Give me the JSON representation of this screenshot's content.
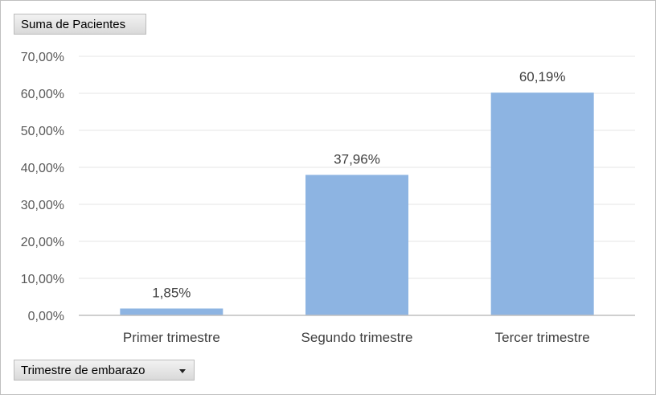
{
  "value_field_button": {
    "label": "Suma de Pacientes"
  },
  "axis_field_button": {
    "label": "Trimestre de embarazo",
    "icon": "chevron-down-icon"
  },
  "chart_data": {
    "type": "bar",
    "categories": [
      "Primer trimestre",
      "Segundo trimestre",
      "Tercer trimestre"
    ],
    "values": [
      1.85,
      37.96,
      60.19
    ],
    "data_labels": [
      "1,85%",
      "37,96%",
      "60,19%"
    ],
    "ylim": [
      0,
      70
    ],
    "y_ticks": [
      0,
      10,
      20,
      30,
      40,
      50,
      60,
      70
    ],
    "y_tick_labels": [
      "0,00%",
      "10,00%",
      "20,00%",
      "30,00%",
      "40,00%",
      "50,00%",
      "60,00%",
      "70,00%"
    ],
    "grid": true,
    "bar_color": "#8db4e2",
    "title": "",
    "xlabel": "",
    "ylabel": ""
  }
}
